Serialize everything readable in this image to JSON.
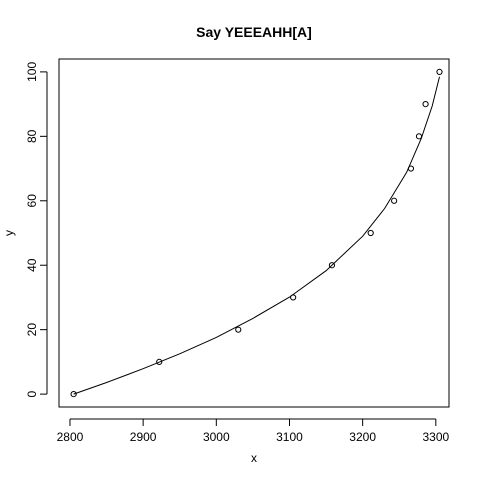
{
  "chart_data": {
    "type": "scatter",
    "title": "Say YEEEAHH[A]",
    "xlabel": "x",
    "ylabel": "y",
    "xlim": [
      2785,
      3318
    ],
    "ylim": [
      -4,
      104
    ],
    "x_ticks": [
      2800,
      2900,
      3000,
      3100,
      3200,
      3300
    ],
    "y_ticks": [
      0,
      20,
      40,
      60,
      80,
      100
    ],
    "grid": false,
    "legend": "none",
    "series": [
      {
        "kind": "points",
        "marker": "open-circle",
        "x": [
          2805,
          2922,
          3030,
          3105,
          3158,
          3211,
          3243,
          3266,
          3277,
          3286,
          3305
        ],
        "y": [
          0,
          10,
          20,
          30,
          40,
          50,
          60,
          70,
          80,
          90,
          100
        ]
      },
      {
        "kind": "line",
        "x": [
          2805,
          2850,
          2900,
          2950,
          3000,
          3050,
          3100,
          3150,
          3200,
          3230,
          3260,
          3280,
          3295,
          3305
        ],
        "y": [
          0,
          3.6,
          7.9,
          12.5,
          17.6,
          23.5,
          30.1,
          38.3,
          49.0,
          57.6,
          68.8,
          79.3,
          89.4,
          98.5
        ]
      }
    ],
    "colors": {
      "points": "#000000",
      "line": "#000000",
      "axes": "#000000"
    }
  }
}
